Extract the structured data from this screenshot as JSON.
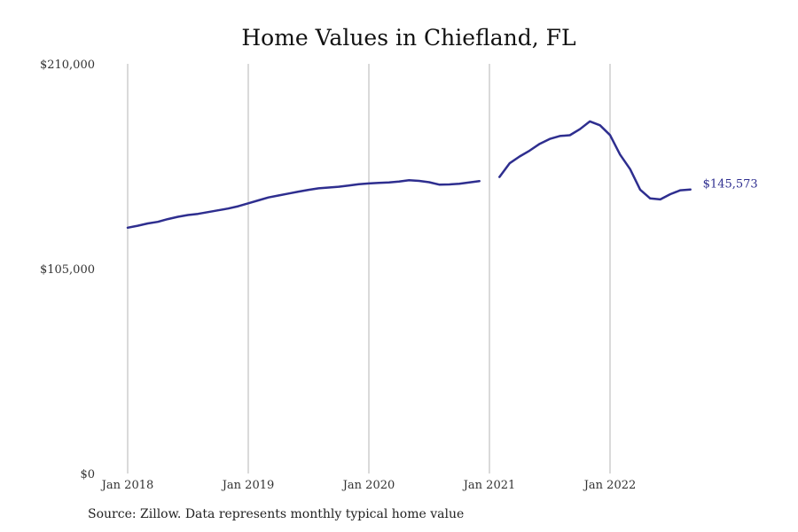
{
  "chart_data": {
    "type": "line",
    "title": "Home Values in Chiefland, FL",
    "xlabel": "",
    "ylabel": "",
    "source": "Source: Zillow. Data represents monthly typical home value",
    "ylim": [
      0,
      210000
    ],
    "y_ticks": [
      {
        "value": 0,
        "label": "$0"
      },
      {
        "value": 105000,
        "label": "$105,000"
      },
      {
        "value": 210000,
        "label": "$210,000"
      }
    ],
    "x_ticks": [
      {
        "value": "2018-01",
        "label": "Jan 2018"
      },
      {
        "value": "2019-01",
        "label": "Jan 2019"
      },
      {
        "value": "2020-01",
        "label": "Jan 2020"
      },
      {
        "value": "2021-01",
        "label": "Jan 2021"
      },
      {
        "value": "2022-01",
        "label": "Jan 2022"
      }
    ],
    "grid": "vertical",
    "end_label": "$145,573",
    "line_color": "#2e2e8f",
    "series": [
      {
        "segments": [
          {
            "x": [
              "2018-01",
              "2018-02",
              "2018-03",
              "2018-04",
              "2018-05",
              "2018-06",
              "2018-07",
              "2018-08",
              "2018-09",
              "2018-10",
              "2018-11",
              "2018-12",
              "2019-01",
              "2019-02",
              "2019-03",
              "2019-04",
              "2019-05",
              "2019-06",
              "2019-07",
              "2019-08",
              "2019-09",
              "2019-10",
              "2019-11",
              "2019-12",
              "2020-01",
              "2020-02",
              "2020-03",
              "2020-04",
              "2020-05",
              "2020-06",
              "2020-07",
              "2020-08",
              "2020-09",
              "2020-10",
              "2020-11",
              "2020-12"
            ],
            "y": [
              126000,
              127000,
              128200,
              129000,
              130400,
              131600,
              132500,
              133100,
              134000,
              134900,
              135800,
              137000,
              138500,
              140000,
              141500,
              142500,
              143500,
              144500,
              145400,
              146200,
              146600,
              147000,
              147600,
              148300,
              148700,
              149000,
              149200,
              149700,
              150300,
              150000,
              149300,
              148100,
              148200,
              148500,
              149200,
              149900
            ]
          },
          {
            "x": [
              "2021-02",
              "2021-03",
              "2021-04",
              "2021-05",
              "2021-06",
              "2021-07",
              "2021-08",
              "2021-09",
              "2021-10",
              "2021-11",
              "2021-12",
              "2022-01",
              "2022-02",
              "2022-03",
              "2022-04",
              "2022-05",
              "2022-06",
              "2022-07",
              "2022-08",
              "2022-09"
            ],
            "y": [
              152000,
              159000,
              162500,
              165500,
              169000,
              171500,
              173000,
              173400,
              176500,
              180500,
              178500,
              173500,
              163500,
              156000,
              145500,
              141000,
              140500,
              143200,
              145200,
              145573
            ]
          }
        ]
      }
    ]
  }
}
